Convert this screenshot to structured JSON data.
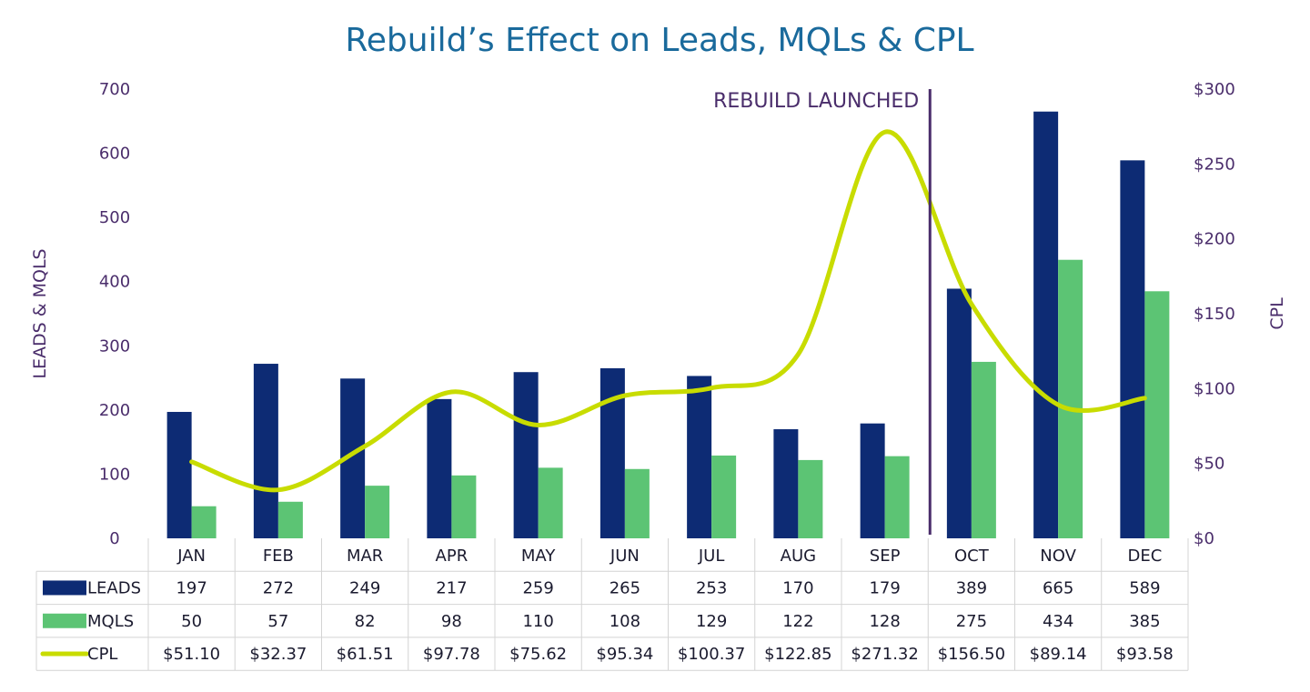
{
  "chart_data": {
    "type": "bar",
    "title": "Rebuild’s Effect on Leads, MQLs & CPL",
    "categories": [
      "JAN",
      "FEB",
      "MAR",
      "APR",
      "MAY",
      "JUN",
      "JUL",
      "AUG",
      "SEP",
      "OCT",
      "NOV",
      "DEC"
    ],
    "series": [
      {
        "name": "LEADS",
        "type": "bar",
        "axis": "left",
        "color": "#0d2b74",
        "values": [
          197,
          272,
          249,
          217,
          259,
          265,
          253,
          170,
          179,
          389,
          665,
          589
        ]
      },
      {
        "name": "MQLS",
        "type": "bar",
        "axis": "left",
        "color": "#5cc474",
        "values": [
          50,
          57,
          82,
          98,
          110,
          108,
          129,
          122,
          128,
          275,
          434,
          385
        ]
      },
      {
        "name": "CPL",
        "type": "line",
        "axis": "right",
        "color": "#c8dc00",
        "smooth": true,
        "values": [
          51.1,
          32.37,
          61.51,
          97.78,
          75.62,
          95.34,
          100.37,
          122.85,
          271.32,
          156.5,
          89.14,
          93.58
        ]
      }
    ],
    "table_rows": [
      {
        "series": "LEADS",
        "cells": [
          "197",
          "272",
          "249",
          "217",
          "259",
          "265",
          "253",
          "170",
          "179",
          "389",
          "665",
          "589"
        ]
      },
      {
        "series": "MQLS",
        "cells": [
          "50",
          "57",
          "82",
          "98",
          "110",
          "108",
          "129",
          "122",
          "128",
          "275",
          "434",
          "385"
        ]
      },
      {
        "series": "CPL",
        "cells": [
          "$51.10",
          "$32.37",
          "$61.51",
          "$97.78",
          "$75.62",
          "$95.34",
          "$100.37",
          "$122.85",
          "$271.32",
          "$156.50",
          "$89.14",
          "$93.58"
        ]
      }
    ],
    "ylabel": "LEADS & MQLS",
    "ylim": [
      0,
      700
    ],
    "yticks": [
      "0",
      "100",
      "200",
      "300",
      "400",
      "500",
      "600",
      "700"
    ],
    "y2label": "CPL",
    "y2lim": [
      0,
      300
    ],
    "y2ticks": [
      "$0",
      "$50",
      "$100",
      "$150",
      "$200",
      "$250",
      "$300"
    ],
    "annotation": {
      "text": "REBUILD LAUNCHED",
      "between": [
        "SEP",
        "OCT"
      ],
      "color": "#4a2d6b"
    },
    "grid": false,
    "legend": "data-table-bottom"
  }
}
